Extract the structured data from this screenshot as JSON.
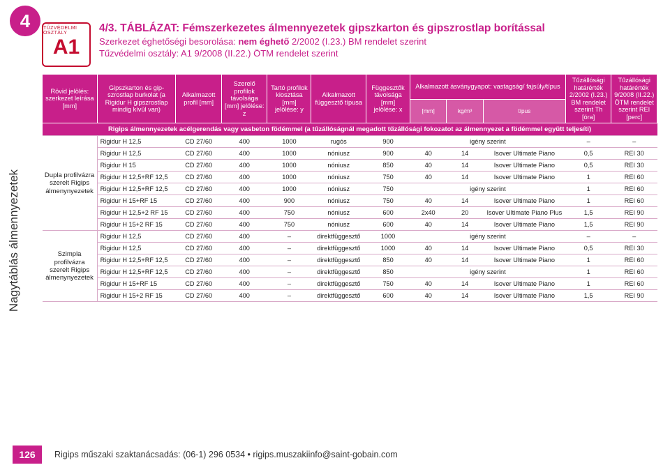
{
  "chapter": "4",
  "side_label": "Nagytáblás álmennyezetek",
  "badge": {
    "arc": "TŰZVÉDELMI OSZTÁLY",
    "label": "A1"
  },
  "title": {
    "line1": "4/3. TÁBLÁZAT: Fémszerkezetes álmennyezetek gipszkarton és gipszrostlap borítással",
    "line2_a": "Szerkezet éghetőségi besorolása: ",
    "line2_b": "nem éghető",
    "line2_c": " 2/2002 (I.23.) BM rendelet szerint",
    "line3": "Tűzvédelmi osztály: A1 9/2008 (II.22.) ÖTM rendelet szerint"
  },
  "headers": {
    "h0": "Rövid jelölés: szerkezet leírása [mm]",
    "h1": "Gipszkarton és gip­szrostlap burkolat (a Rigidur H gipszrostlap mindig kívül van)",
    "h2": "Alkal­mazott profil [mm]",
    "h3": "Szerelő profilok távolsága [mm] jelölése: z",
    "h4": "Tartó profilok kiosztása [mm] jelölése: y",
    "h5": "Alkal­mazott függesztő típusa",
    "h6": "Füg­gesztők távolsága [mm] jelölése: x",
    "h7": "Alkalmazott ásványgyapot: vastagság/ fajsúly/típus",
    "h7a": "[mm]",
    "h7b": "kg/m³",
    "h7c": "típus",
    "h8": "Tűzállósági határérték 2/2002 (I.23.) BM rendelet szerint Th [óra]",
    "h9": "Tűzállósági határérték 9/2008 (II.22.) ÖTM rendelet szerint REI [perc]"
  },
  "note": "Rigips álmennyezetek acélgerendás vagy vasbeton födémmel (a tűzállóságnál megadott tűzállósági fokozatot az álmennyezet a födémmel együtt teljesíti)",
  "groups": {
    "g1": "Dupla profilvázra szerelt Rigips álmeny­nyezetek",
    "g2": "Szimpla profilvázra szerelt Rigips álmeny­nyezetek"
  },
  "rows": [
    {
      "g": "g1",
      "c": [
        "Rigidur H 12,5",
        "CD 27/60",
        "400",
        "1000",
        "rugós",
        "900",
        "",
        "igény szerint",
        "",
        "–",
        "–"
      ]
    },
    {
      "g": "g1",
      "c": [
        "Rigidur H 12,5",
        "CD 27/60",
        "400",
        "1000",
        "nóniusz",
        "900",
        "40",
        "14",
        "Isover Ultimate Piano",
        "0,5",
        "REI 30"
      ]
    },
    {
      "g": "g1",
      "c": [
        "Rigidur H 15",
        "CD 27/60",
        "400",
        "1000",
        "nóniusz",
        "850",
        "40",
        "14",
        "Isover Ultimate Piano",
        "0,5",
        "REI 30"
      ]
    },
    {
      "g": "g1",
      "c": [
        "Rigidur H 12,5+RF 12,5",
        "CD 27/60",
        "400",
        "1000",
        "nóniusz",
        "750",
        "40",
        "14",
        "Isover Ultimate Piano",
        "1",
        "REI 60"
      ]
    },
    {
      "g": "g1",
      "c": [
        "Rigidur H 12,5+RF 12,5",
        "CD 27/60",
        "400",
        "1000",
        "nóniusz",
        "750",
        "",
        "igény szerint",
        "",
        "1",
        "REI 60"
      ]
    },
    {
      "g": "g1",
      "c": [
        "Rigidur H 15+RF 15",
        "CD 27/60",
        "400",
        "900",
        "nóniusz",
        "750",
        "40",
        "14",
        "Isover Ultimate Piano",
        "1",
        "REI 60"
      ]
    },
    {
      "g": "g1",
      "c": [
        "Rigidur H 12,5+2 RF 15",
        "CD 27/60",
        "400",
        "750",
        "nóniusz",
        "600",
        "2x40",
        "20",
        "Isover Ultimate Piano Plus",
        "1,5",
        "REI 90"
      ]
    },
    {
      "g": "g1",
      "c": [
        "Rigidur H 15+2 RF 15",
        "CD 27/60",
        "400",
        "750",
        "nóniusz",
        "600",
        "40",
        "14",
        "Isover Ultimate Piano",
        "1,5",
        "REI 90"
      ]
    },
    {
      "g": "g2",
      "c": [
        "Rigidur H 12,5",
        "CD 27/60",
        "400",
        "–",
        "direktfüggesztő",
        "1000",
        "",
        "igény szerint",
        "",
        "–",
        "–"
      ]
    },
    {
      "g": "g2",
      "c": [
        "Rigidur H 12,5",
        "CD 27/60",
        "400",
        "–",
        "direktfüggesztő",
        "1000",
        "40",
        "14",
        "Isover Ultimate Piano",
        "0,5",
        "REI 30"
      ]
    },
    {
      "g": "g2",
      "c": [
        "Rigidur H 12,5+RF 12,5",
        "CD 27/60",
        "400",
        "–",
        "direktfüggesztő",
        "850",
        "40",
        "14",
        "Isover Ultimate Piano",
        "1",
        "REI 60"
      ]
    },
    {
      "g": "g2",
      "c": [
        "Rigidur H 12,5+RF 12,5",
        "CD 27/60",
        "400",
        "–",
        "direktfüggesztő",
        "850",
        "",
        "igény szerint",
        "",
        "1",
        "REI 60"
      ]
    },
    {
      "g": "g2",
      "c": [
        "Rigidur H 15+RF 15",
        "CD 27/60",
        "400",
        "–",
        "direktfüggesztő",
        "750",
        "40",
        "14",
        "Isover Ultimate Piano",
        "1",
        "REI 60"
      ]
    },
    {
      "g": "g2",
      "c": [
        "Rigidur H 15+2 RF 15",
        "CD 27/60",
        "400",
        "–",
        "direktfüggesztő",
        "600",
        "40",
        "14",
        "Isover Ultimate Piano",
        "1,5",
        "REI 90"
      ]
    }
  ],
  "footer": {
    "page": "126",
    "text": "Rigips műszaki szaktanácsadás: (06-1) 296 0534 • rigips.muszakiinfo@saint-gobain.com"
  },
  "colors": {
    "brand": "#c81f8a",
    "red": "#c40c2f",
    "row_border": "#d9a9c8"
  }
}
